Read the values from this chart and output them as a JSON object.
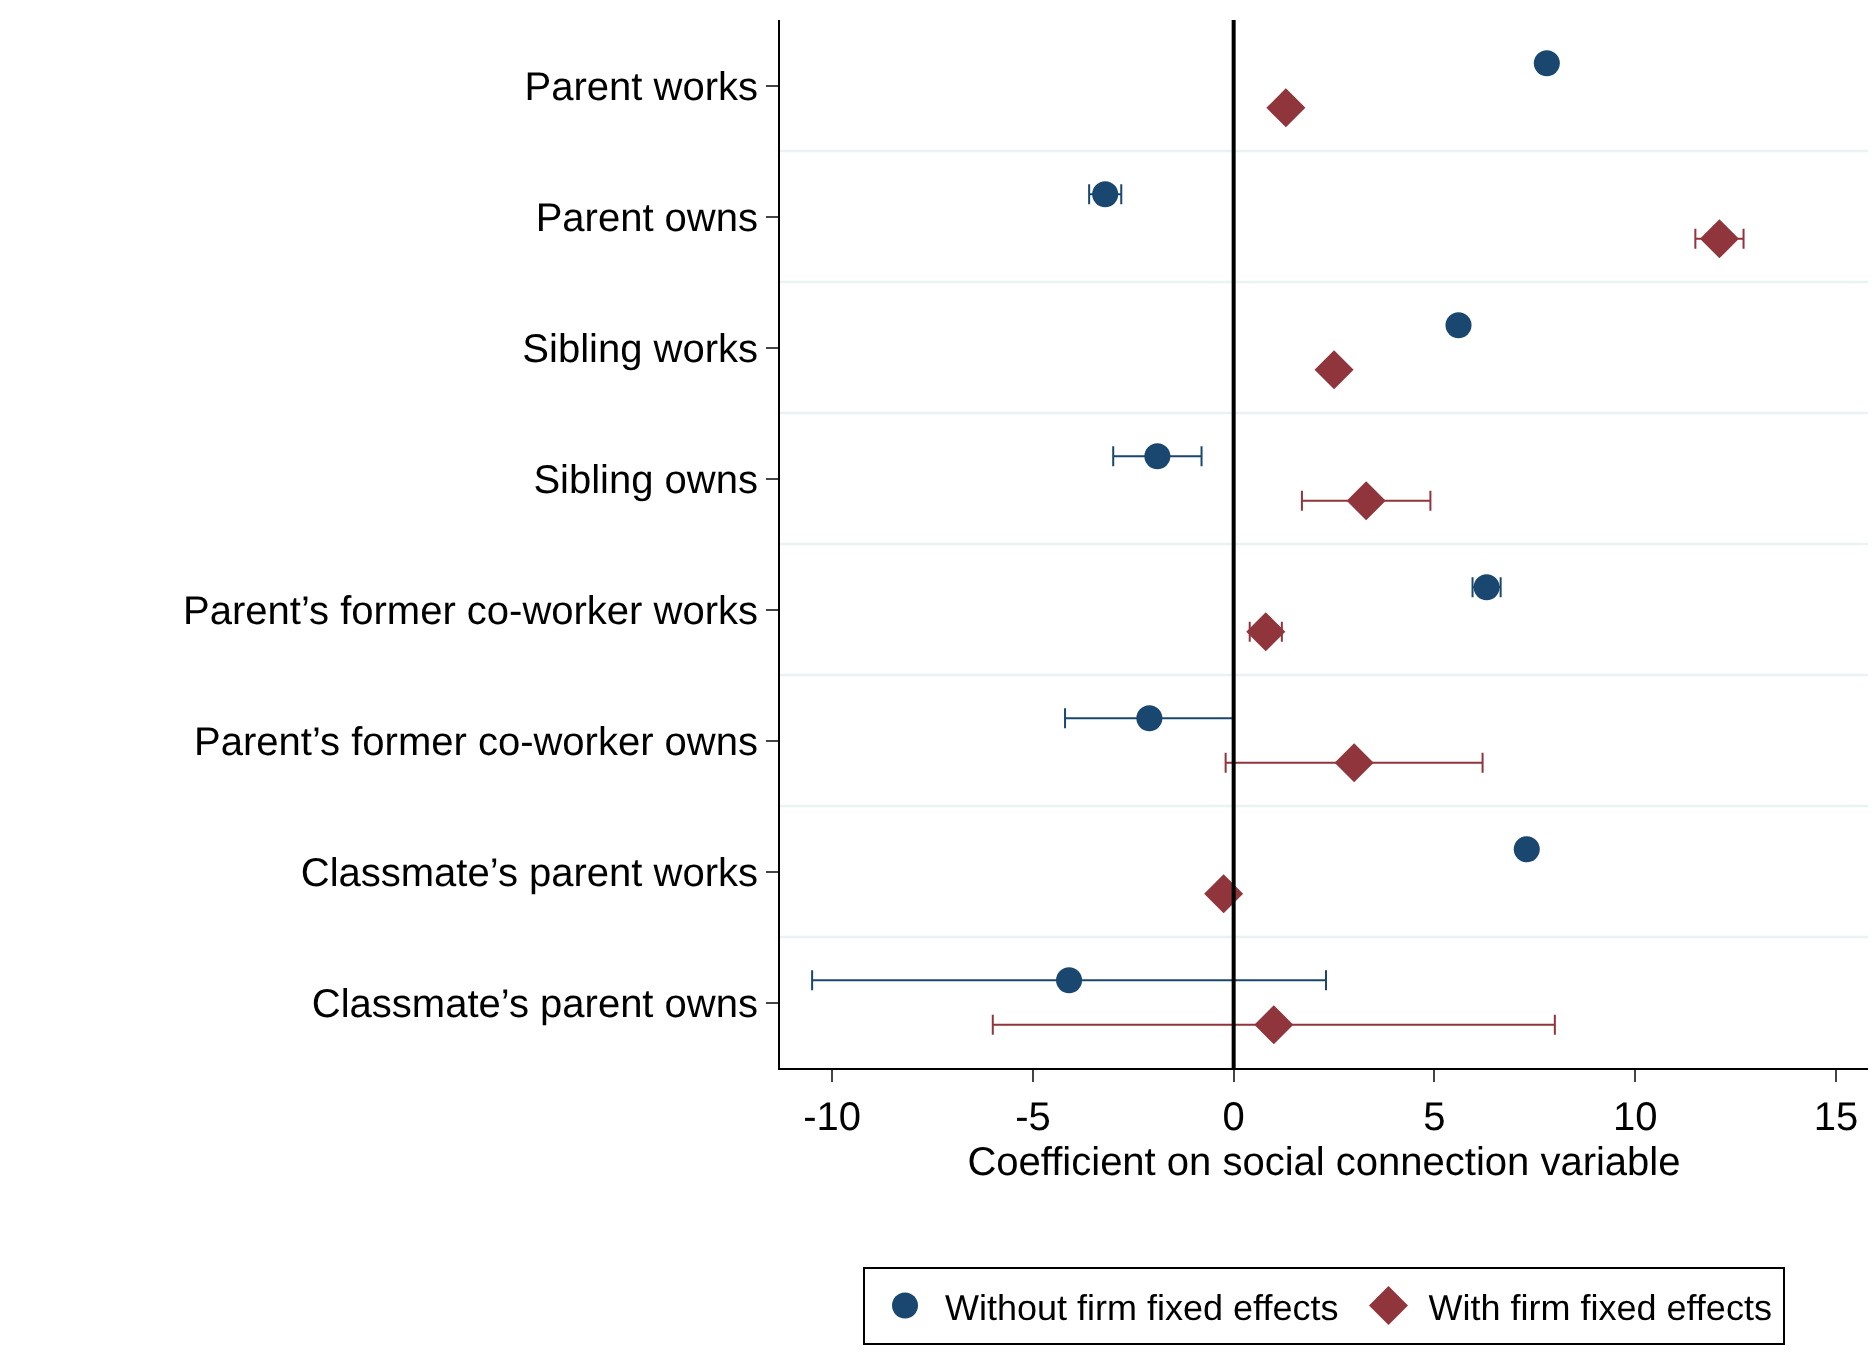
{
  "chart_data": {
    "type": "scatter",
    "orientation": "horizontal",
    "xlabel": "Coefficient on social connection variable",
    "categories": [
      "Parent works",
      "Parent owns",
      "Sibling works",
      "Sibling owns",
      "Parent’s former co-worker works",
      "Parent’s former co-worker owns",
      "Classmate’s parent works",
      "Classmate’s parent owns"
    ],
    "series": [
      {
        "name": "Without firm fixed effects",
        "color": "#1a476f",
        "marker": "circle",
        "values": [
          7.8,
          -3.2,
          5.6,
          -1.9,
          6.3,
          -2.1,
          7.3,
          -4.1
        ],
        "errors": [
          null,
          0.4,
          null,
          1.1,
          0.35,
          2.1,
          null,
          6.4
        ]
      },
      {
        "name": "With firm fixed effects",
        "color": "#90353b",
        "marker": "diamond",
        "values": [
          1.3,
          12.1,
          2.5,
          3.3,
          0.8,
          3.0,
          -0.25,
          1.0
        ],
        "errors": [
          null,
          0.6,
          null,
          1.6,
          0.4,
          3.2,
          null,
          7.0
        ]
      }
    ],
    "xlim": [
      -11.3,
      15.8
    ],
    "xticks": [
      -10,
      -5,
      0,
      5,
      10,
      15
    ],
    "grid": "y",
    "legend": "bottom",
    "ref_lines": [
      {
        "axis": "x",
        "value": 0,
        "color": "#000000"
      }
    ]
  }
}
